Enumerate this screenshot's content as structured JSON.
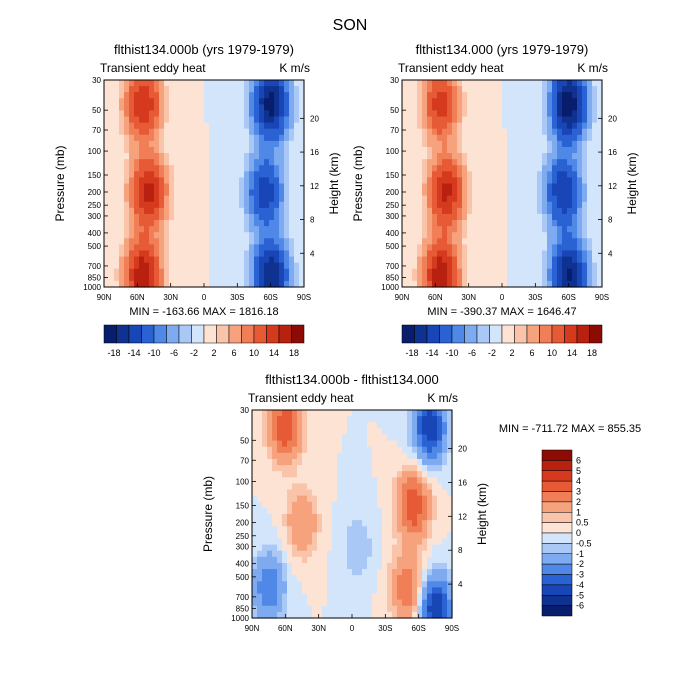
{
  "figure_title": "SON",
  "chart_data": [
    {
      "type": "heatmap",
      "title": "flthist134.000b (yrs 1979-1979)",
      "subtitle_left": "Transient eddy heat",
      "subtitle_right": "K m/s",
      "ylabel": "Pressure (mb)",
      "ylabel_right": "Height (km)",
      "x_ticks": [
        "90N",
        "60N",
        "30N",
        "0",
        "30S",
        "60S",
        "90S"
      ],
      "y_ticks": [
        "30",
        "50",
        "70",
        "100",
        "150",
        "200",
        "250",
        "300",
        "400",
        "500",
        "700",
        "850",
        "1000"
      ],
      "height_ticks": [
        "20",
        "16",
        "12",
        "8",
        "4"
      ],
      "stats": "MIN = -163.66   MAX = 1816.18",
      "colorbar_ticks": [
        "-18",
        "-14",
        "-10",
        "-6",
        "-2",
        "2",
        "6",
        "10",
        "14",
        "18"
      ],
      "features": [
        {
          "sign": 1,
          "lat": 55,
          "pressure": 45,
          "amplitude": 14
        },
        {
          "sign": 1,
          "lat": 50,
          "pressure": 200,
          "amplitude": 16
        },
        {
          "sign": 1,
          "lat": 55,
          "pressure": 820,
          "amplitude": 18
        },
        {
          "sign": -1,
          "lat": -60,
          "pressure": 45,
          "amplitude": 20
        },
        {
          "sign": -1,
          "lat": -55,
          "pressure": 200,
          "amplitude": 13
        },
        {
          "sign": -1,
          "lat": -60,
          "pressure": 820,
          "amplitude": 18
        }
      ]
    },
    {
      "type": "heatmap",
      "title": "flthist134.000 (yrs 1979-1979)",
      "subtitle_left": "Transient eddy heat",
      "subtitle_right": "K m/s",
      "ylabel": "Pressure (mb)",
      "ylabel_right": "Height (km)",
      "x_ticks": [
        "90N",
        "60N",
        "30N",
        "0",
        "30S",
        "60S",
        "90S"
      ],
      "y_ticks": [
        "30",
        "50",
        "70",
        "100",
        "150",
        "200",
        "250",
        "300",
        "400",
        "500",
        "700",
        "850",
        "1000"
      ],
      "height_ticks": [
        "20",
        "16",
        "12",
        "8",
        "4"
      ],
      "stats": "MIN = -390.37   MAX = 1646.47",
      "colorbar_ticks": [
        "-18",
        "-14",
        "-10",
        "-6",
        "-2",
        "2",
        "6",
        "10",
        "14",
        "18"
      ],
      "features": [
        {
          "sign": 1,
          "lat": 55,
          "pressure": 45,
          "amplitude": 12
        },
        {
          "sign": 1,
          "lat": 50,
          "pressure": 200,
          "amplitude": 15
        },
        {
          "sign": 1,
          "lat": 55,
          "pressure": 820,
          "amplitude": 18
        },
        {
          "sign": -1,
          "lat": -60,
          "pressure": 45,
          "amplitude": 22
        },
        {
          "sign": -1,
          "lat": -55,
          "pressure": 200,
          "amplitude": 14
        },
        {
          "sign": -1,
          "lat": -60,
          "pressure": 820,
          "amplitude": 19
        }
      ]
    },
    {
      "type": "heatmap",
      "title": "flthist134.000b - flthist134.000",
      "subtitle_left": "Transient eddy heat",
      "subtitle_right": "K m/s",
      "ylabel": "Pressure (mb)",
      "ylabel_right": "Height (km)",
      "x_ticks": [
        "90N",
        "60N",
        "30N",
        "0",
        "30S",
        "60S",
        "90S"
      ],
      "y_ticks": [
        "30",
        "50",
        "70",
        "100",
        "150",
        "200",
        "250",
        "300",
        "400",
        "500",
        "700",
        "850",
        "1000"
      ],
      "height_ticks": [
        "20",
        "16",
        "12",
        "8",
        "4"
      ],
      "stats": "MIN = -711.72   MAX = 855.35",
      "colorbar_ticks": [
        "6",
        "5",
        "4",
        "3",
        "2",
        "1",
        "0.5",
        "0",
        "-0.5",
        "-1",
        "-2",
        "-3",
        "-4",
        "-5",
        "-6"
      ],
      "features": [
        {
          "sign": 1,
          "lat": 60,
          "pressure": 40,
          "amplitude": 4
        },
        {
          "sign": 1,
          "lat": 45,
          "pressure": 200,
          "amplitude": 2
        },
        {
          "sign": -1,
          "lat": 75,
          "pressure": 600,
          "amplitude": 3
        },
        {
          "sign": 1,
          "lat": -55,
          "pressure": 150,
          "amplitude": 4
        },
        {
          "sign": 1,
          "lat": -50,
          "pressure": 600,
          "amplitude": 3
        },
        {
          "sign": -1,
          "lat": -70,
          "pressure": 40,
          "amplitude": 5
        },
        {
          "sign": -1,
          "lat": -75,
          "pressure": 850,
          "amplitude": 5
        },
        {
          "sign": -1,
          "lat": -5,
          "pressure": 300,
          "amplitude": 1
        }
      ]
    }
  ],
  "colors": {
    "neg": [
      "#081d6b",
      "#0f3290",
      "#1846b6",
      "#2a62d4",
      "#4f88e6",
      "#7eaaf0",
      "#aac8f6",
      "#d3e5fb"
    ],
    "pos": [
      "#fde3d3",
      "#f9c4a9",
      "#f6a27d",
      "#f07f57",
      "#e65a36",
      "#d63a1e",
      "#b82010",
      "#8c0b05"
    ]
  }
}
